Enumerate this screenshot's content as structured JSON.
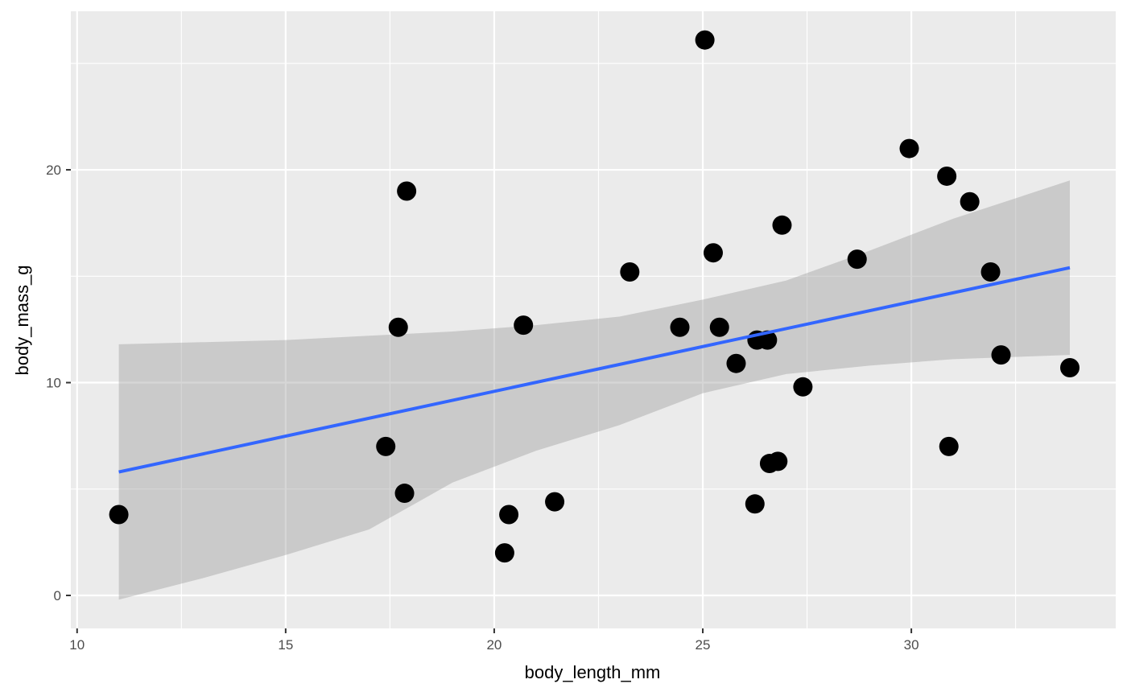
{
  "chart_data": {
    "type": "scatter",
    "title": "",
    "xlabel": "body_length_mm",
    "ylabel": "body_mass_g",
    "xlim": [
      9.85,
      34.9
    ],
    "ylim": [
      -1.55,
      27.45
    ],
    "x_ticks": [
      10,
      15,
      20,
      25,
      30
    ],
    "x_minor_ticks": [
      12.5,
      17.5,
      22.5,
      27.5,
      32.5
    ],
    "y_ticks": [
      0,
      10,
      20
    ],
    "y_minor_ticks": [
      5,
      15,
      25
    ],
    "grid": true,
    "legend": "none",
    "colors": {
      "panel": "#ebebeb",
      "grid": "#ffffff",
      "point": "#000000",
      "fit_line": "#3366ff",
      "ribbon": "#999999"
    },
    "points": [
      {
        "x": 11.0,
        "y": 3.8
      },
      {
        "x": 17.4,
        "y": 7.0
      },
      {
        "x": 17.7,
        "y": 12.6
      },
      {
        "x": 17.85,
        "y": 4.8
      },
      {
        "x": 17.9,
        "y": 19.0
      },
      {
        "x": 20.25,
        "y": 2.0
      },
      {
        "x": 20.35,
        "y": 3.8
      },
      {
        "x": 20.7,
        "y": 12.7
      },
      {
        "x": 21.45,
        "y": 4.4
      },
      {
        "x": 23.25,
        "y": 15.2
      },
      {
        "x": 24.45,
        "y": 12.6
      },
      {
        "x": 25.05,
        "y": 26.1
      },
      {
        "x": 25.25,
        "y": 16.1
      },
      {
        "x": 25.4,
        "y": 12.6
      },
      {
        "x": 25.8,
        "y": 10.9
      },
      {
        "x": 26.25,
        "y": 4.3
      },
      {
        "x": 26.3,
        "y": 12.0
      },
      {
        "x": 26.55,
        "y": 12.0
      },
      {
        "x": 26.6,
        "y": 6.2
      },
      {
        "x": 26.8,
        "y": 6.3
      },
      {
        "x": 26.9,
        "y": 17.4
      },
      {
        "x": 27.4,
        "y": 9.8
      },
      {
        "x": 28.7,
        "y": 15.8
      },
      {
        "x": 29.95,
        "y": 21.0
      },
      {
        "x": 30.85,
        "y": 19.7
      },
      {
        "x": 30.9,
        "y": 7.0
      },
      {
        "x": 31.4,
        "y": 18.5
      },
      {
        "x": 31.9,
        "y": 15.2
      },
      {
        "x": 32.15,
        "y": 11.3
      },
      {
        "x": 33.8,
        "y": 10.7
      }
    ],
    "fit": {
      "method": "lm",
      "x_range": [
        11.0,
        33.8
      ],
      "y_at_range": [
        5.8,
        15.4
      ],
      "se_band": [
        {
          "x": 11.0,
          "lower": -0.2,
          "upper": 11.8
        },
        {
          "x": 13.0,
          "lower": 0.8,
          "upper": 11.9
        },
        {
          "x": 15.0,
          "lower": 1.9,
          "upper": 12.0
        },
        {
          "x": 17.0,
          "lower": 3.1,
          "upper": 12.2
        },
        {
          "x": 19.0,
          "lower": 5.3,
          "upper": 12.4
        },
        {
          "x": 21.0,
          "lower": 6.8,
          "upper": 12.7
        },
        {
          "x": 23.0,
          "lower": 8.0,
          "upper": 13.1
        },
        {
          "x": 25.0,
          "lower": 9.5,
          "upper": 13.9
        },
        {
          "x": 27.0,
          "lower": 10.4,
          "upper": 14.8
        },
        {
          "x": 29.0,
          "lower": 10.8,
          "upper": 16.2
        },
        {
          "x": 31.0,
          "lower": 11.1,
          "upper": 17.7
        },
        {
          "x": 33.8,
          "lower": 11.3,
          "upper": 19.5
        }
      ]
    }
  }
}
